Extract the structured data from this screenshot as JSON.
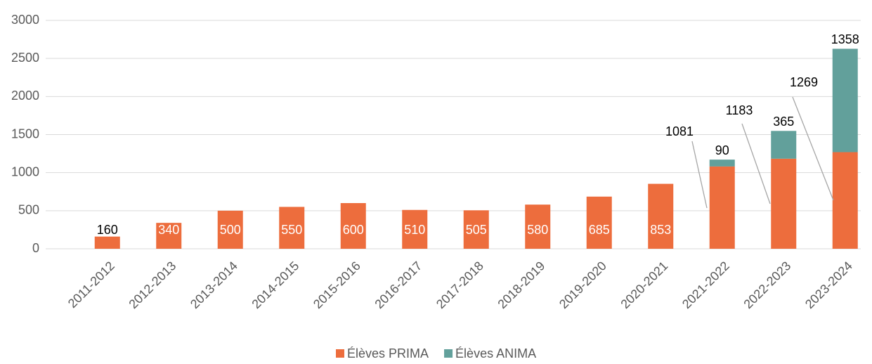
{
  "chart_data": {
    "type": "bar",
    "stacked": true,
    "categories": [
      "2011-2012",
      "2012-2013",
      "2013-2014",
      "2014-2015",
      "2015-2016",
      "2016-2017",
      "2017-2018",
      "2018-2019",
      "2019-2020",
      "2020-2021",
      "2021-2022",
      "2022-2023",
      "2023-2024"
    ],
    "series": [
      {
        "name": "Élèves PRIMA",
        "color": "#ed6d3d",
        "values": [
          160,
          340,
          500,
          550,
          600,
          510,
          505,
          580,
          685,
          853,
          1081,
          1183,
          1269
        ]
      },
      {
        "name": "Élèves ANIMA",
        "color": "#62a09b",
        "values": [
          null,
          null,
          null,
          null,
          null,
          null,
          null,
          null,
          null,
          null,
          90,
          365,
          1358
        ]
      }
    ],
    "ylim": [
      0,
      3000
    ],
    "yticks": [
      0,
      500,
      1000,
      1500,
      2000,
      2500,
      3000
    ],
    "grid": true,
    "legend": "bottom"
  }
}
